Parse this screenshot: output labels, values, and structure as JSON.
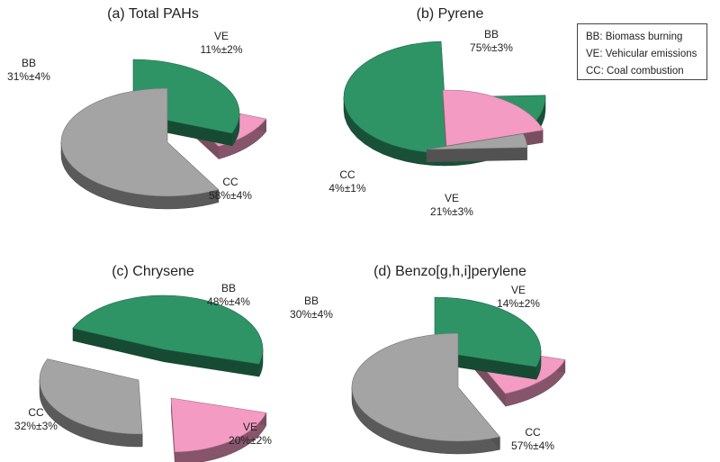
{
  "legend": {
    "lines": [
      "BB: Biomass burning",
      "VE: Vehicular emissions",
      "CC: Coal combustion"
    ]
  },
  "colors": {
    "BB": "#2e9466",
    "VE": "#f39bc2",
    "CC": "#a4a4a4"
  },
  "chart_data": [
    {
      "type": "pie",
      "title": "(a) Total PAHs",
      "slices": [
        {
          "key": "BB",
          "value": 31,
          "uncertainty": 4,
          "label": "BB",
          "value_text": "31%±4%"
        },
        {
          "key": "VE",
          "value": 11,
          "uncertainty": 2,
          "label": "VE",
          "value_text": "11%±2%"
        },
        {
          "key": "CC",
          "value": 58,
          "uncertainty": 4,
          "label": "CC",
          "value_text": "58%±4%"
        }
      ]
    },
    {
      "type": "pie",
      "title": "(b) Pyrene",
      "slices": [
        {
          "key": "BB",
          "value": 75,
          "uncertainty": 3,
          "label": "BB",
          "value_text": "75%±3%"
        },
        {
          "key": "VE",
          "value": 21,
          "uncertainty": 3,
          "label": "VE",
          "value_text": "21%±3%"
        },
        {
          "key": "CC",
          "value": 4,
          "uncertainty": 1,
          "label": "CC",
          "value_text": "4%±1%"
        }
      ]
    },
    {
      "type": "pie",
      "title": "(c) Chrysene",
      "slices": [
        {
          "key": "BB",
          "value": 48,
          "uncertainty": 4,
          "label": "BB",
          "value_text": "48%±4%"
        },
        {
          "key": "VE",
          "value": 20,
          "uncertainty": 2,
          "label": "VE",
          "value_text": "20%±2%"
        },
        {
          "key": "CC",
          "value": 32,
          "uncertainty": 3,
          "label": "CC",
          "value_text": "32%±3%"
        }
      ]
    },
    {
      "type": "pie",
      "title": "(d) Benzo[g,h,i]perylene",
      "slices": [
        {
          "key": "BB",
          "value": 30,
          "uncertainty": 4,
          "label": "BB",
          "value_text": "30%±4%"
        },
        {
          "key": "VE",
          "value": 14,
          "uncertainty": 2,
          "label": "VE",
          "value_text": "14%±2%"
        },
        {
          "key": "CC",
          "value": 57,
          "uncertainty": 4,
          "label": "CC",
          "value_text": "57%±4%"
        }
      ]
    }
  ]
}
